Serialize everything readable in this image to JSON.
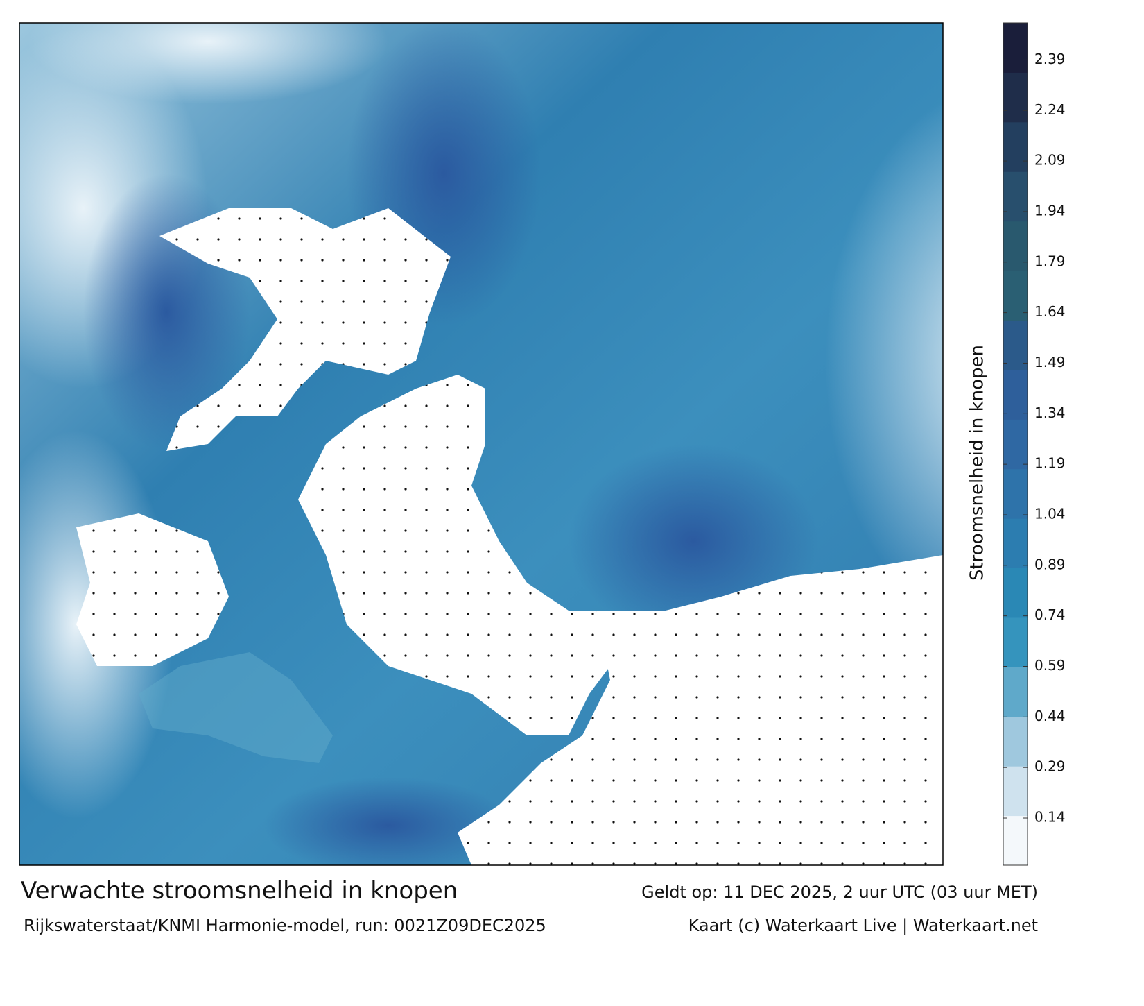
{
  "title": "Verwachte stroomsnelheid in knopen",
  "model_run": "Rijkswaterstaat/KNMI Harmonie-model, run: 0021Z09DEC2025",
  "valid_time": "Geldt op: 11 DEC 2025, 2 uur UTC (03 uur MET)",
  "credit": "Kaart (c) Waterkaart Live | Waterkaart.net",
  "colorbar": {
    "label": "Stroomsnelheid in knopen",
    "lim": [
      0,
      2.5
    ],
    "ticks": [
      0.14,
      0.29,
      0.44,
      0.59,
      0.74,
      0.89,
      1.04,
      1.19,
      1.34,
      1.49,
      1.64,
      1.79,
      1.94,
      2.09,
      2.24,
      2.39
    ],
    "colors": [
      "#f4f8fb",
      "#cfe2ee",
      "#9fc8de",
      "#5fa9ca",
      "#3594bd",
      "#2a88b5",
      "#2c7db0",
      "#2e73aa",
      "#2f68a3",
      "#2e5f9b",
      "#2b5a8a",
      "#2a5f73",
      "#29596e",
      "#284f6d",
      "#233f5f",
      "#1f2d4a",
      "#1a1e3a"
    ]
  }
}
